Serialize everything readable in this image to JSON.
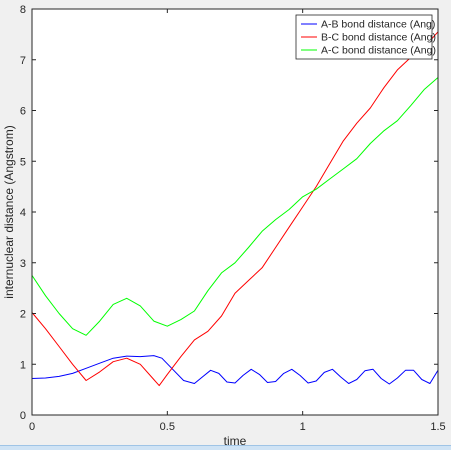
{
  "chart_data": {
    "type": "line",
    "title": "",
    "xlabel": "time",
    "ylabel": "internuclear distance (Angstrom)",
    "xlim": [
      0,
      1.5
    ],
    "ylim": [
      0,
      8
    ],
    "xticks": [
      "0",
      "0.5",
      "1",
      "1.5"
    ],
    "yticks": [
      "0",
      "1",
      "2",
      "3",
      "4",
      "5",
      "6",
      "7",
      "8"
    ],
    "grid": false,
    "legend_position": "top-right",
    "series": [
      {
        "name": "A-B bond distance (Ang)",
        "color": "#0000ff",
        "x": [
          0,
          0.05,
          0.1,
          0.15,
          0.2,
          0.25,
          0.3,
          0.35,
          0.4,
          0.45,
          0.48,
          0.52,
          0.56,
          0.6,
          0.63,
          0.66,
          0.69,
          0.72,
          0.75,
          0.78,
          0.81,
          0.84,
          0.87,
          0.9,
          0.93,
          0.96,
          0.99,
          1.02,
          1.05,
          1.08,
          1.11,
          1.14,
          1.17,
          1.2,
          1.23,
          1.26,
          1.29,
          1.32,
          1.35,
          1.38,
          1.41,
          1.44,
          1.47,
          1.5
        ],
        "values": [
          0.72,
          0.73,
          0.76,
          0.82,
          0.92,
          1.02,
          1.12,
          1.16,
          1.15,
          1.17,
          1.12,
          0.9,
          0.68,
          0.62,
          0.75,
          0.88,
          0.82,
          0.65,
          0.63,
          0.78,
          0.9,
          0.8,
          0.64,
          0.66,
          0.82,
          0.9,
          0.78,
          0.63,
          0.67,
          0.84,
          0.9,
          0.75,
          0.62,
          0.7,
          0.87,
          0.9,
          0.72,
          0.61,
          0.73,
          0.88,
          0.88,
          0.7,
          0.62,
          0.88
        ]
      },
      {
        "name": "B-C bond distance (Ang)",
        "color": "#ff0000",
        "x": [
          0,
          0.05,
          0.1,
          0.15,
          0.2,
          0.25,
          0.3,
          0.35,
          0.4,
          0.45,
          0.47,
          0.5,
          0.55,
          0.6,
          0.65,
          0.7,
          0.75,
          0.8,
          0.85,
          0.9,
          0.95,
          1.0,
          1.05,
          1.1,
          1.15,
          1.2,
          1.25,
          1.3,
          1.35,
          1.4,
          1.45,
          1.5
        ],
        "values": [
          2.02,
          1.7,
          1.35,
          1.0,
          0.68,
          0.85,
          1.05,
          1.12,
          1.0,
          0.7,
          0.58,
          0.8,
          1.15,
          1.48,
          1.65,
          1.95,
          2.4,
          2.65,
          2.9,
          3.3,
          3.7,
          4.1,
          4.5,
          4.95,
          5.4,
          5.75,
          6.05,
          6.45,
          6.8,
          7.05,
          7.25,
          7.55
        ]
      },
      {
        "name": "A-C bond distance (Ang)",
        "color": "#00ff00",
        "x": [
          0,
          0.05,
          0.1,
          0.15,
          0.2,
          0.25,
          0.3,
          0.35,
          0.4,
          0.45,
          0.5,
          0.55,
          0.6,
          0.65,
          0.7,
          0.75,
          0.8,
          0.85,
          0.9,
          0.95,
          1.0,
          1.05,
          1.1,
          1.15,
          1.2,
          1.25,
          1.3,
          1.35,
          1.4,
          1.45,
          1.5
        ],
        "values": [
          2.75,
          2.35,
          2.0,
          1.7,
          1.57,
          1.85,
          2.18,
          2.3,
          2.15,
          1.85,
          1.75,
          1.88,
          2.05,
          2.45,
          2.8,
          3.0,
          3.3,
          3.62,
          3.85,
          4.05,
          4.3,
          4.45,
          4.65,
          4.85,
          5.05,
          5.35,
          5.6,
          5.8,
          6.1,
          6.42,
          6.65
        ]
      }
    ]
  }
}
